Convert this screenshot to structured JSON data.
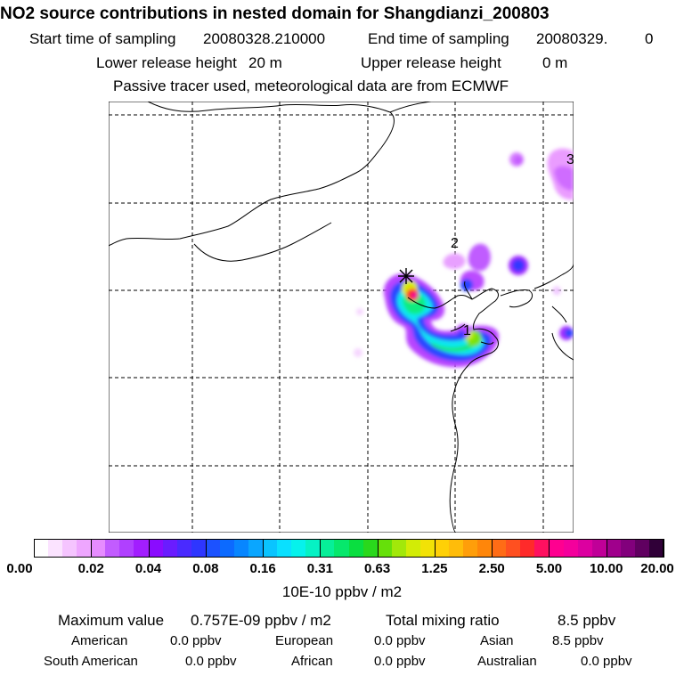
{
  "title": "NO2 source contributions in nested domain for Shangdianzi_200803",
  "sampling": {
    "start_label": "Start time of sampling",
    "start_value": "20080328.210000",
    "end_label": "End time of sampling",
    "end_value": "20080329.",
    "end_extra": "0"
  },
  "release": {
    "lower_label": "Lower release height",
    "lower_value": "20 m",
    "upper_label": "Upper release height",
    "upper_value": "0 m"
  },
  "note": "Passive tracer used, meteorological data are from ECMWF",
  "map": {
    "station_marks": [
      "1",
      "2",
      "3"
    ],
    "receptor_icon": "asterisk-marker-icon"
  },
  "colorbar": {
    "colors": [
      "#ffffff",
      "#fbe3ff",
      "#f5c4ff",
      "#eea6ff",
      "#e68cff",
      "#c25cff",
      "#b040ff",
      "#a21eff",
      "#8a0cff",
      "#6a1cff",
      "#4a2aff",
      "#2e36ff",
      "#1c52ff",
      "#0c6aff",
      "#0886ff",
      "#0aa6ff",
      "#0ac4ff",
      "#0ae0ff",
      "#06f2ec",
      "#06f2c4",
      "#06ef98",
      "#06e86c",
      "#0ade40",
      "#2ad81c",
      "#66e00a",
      "#a2e80a",
      "#d2ec06",
      "#f2e206",
      "#ffd006",
      "#ffbc0a",
      "#ff9e0a",
      "#ff860a",
      "#ff6c16",
      "#ff5020",
      "#ff2a2a",
      "#ff1060",
      "#ff0090",
      "#f4009c",
      "#dc00a0",
      "#c00098",
      "#a0008c",
      "#82007c",
      "#600060",
      "#300038"
    ],
    "tick_labels": [
      "0.00",
      "0.02",
      "0.04",
      "0.08",
      "0.16",
      "0.31",
      "0.63",
      "1.25",
      "2.50",
      "5.00",
      "10.00",
      "20.00"
    ],
    "unit": "10E-10 ppbv / m2"
  },
  "summary": {
    "max_label": "Maximum value",
    "max_value": "0.757E-09 ppbv / m2",
    "total_label": "Total mixing ratio",
    "total_value": "8.5 ppbv",
    "regions": [
      {
        "name": "American",
        "value": "0.0 ppbv"
      },
      {
        "name": "European",
        "value": "0.0 ppbv"
      },
      {
        "name": "Asian",
        "value": "8.5 ppbv"
      },
      {
        "name": "South American",
        "value": "0.0 ppbv"
      },
      {
        "name": "African",
        "value": "0.0 ppbv"
      },
      {
        "name": "Australian",
        "value": "0.0 ppbv"
      }
    ]
  }
}
